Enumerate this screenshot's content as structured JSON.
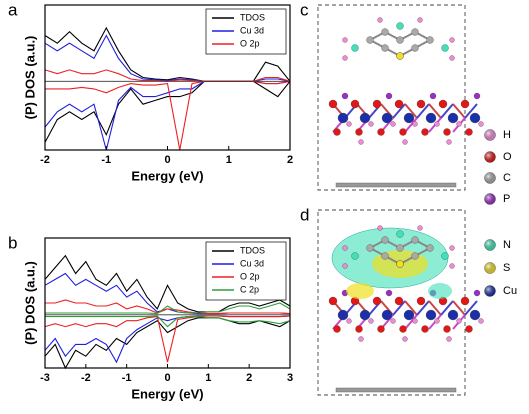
{
  "chart_data": [
    {
      "type": "line",
      "panel_label": "a",
      "xlabel": "Energy (eV)",
      "ylabel": "(P) DOS (a.u.)",
      "xlim": [
        -2,
        2
      ],
      "xticks": [
        -2,
        -1,
        0,
        1,
        2
      ],
      "ylim": [
        -9,
        10
      ],
      "legend": "upper right",
      "x": [
        -2,
        -1.8,
        -1.6,
        -1.4,
        -1.2,
        -1,
        -0.8,
        -0.6,
        -0.4,
        -0.2,
        0,
        0.2,
        0.4,
        0.6,
        0.8,
        1,
        1.2,
        1.4,
        1.6,
        1.8,
        2
      ],
      "series": [
        {
          "name": "TDOS",
          "color": "#000000",
          "values": [
            6,
            5,
            6.5,
            5,
            4,
            7,
            4,
            1.5,
            0.5,
            0.3,
            0.2,
            0.5,
            0.3,
            0,
            0,
            0,
            0,
            0,
            2.5,
            2,
            0
          ],
          "values_down": [
            -8,
            -5,
            -4,
            -5,
            -4,
            -7,
            -3,
            -1,
            -3,
            -2.5,
            -2,
            -2,
            -1.5,
            0,
            0,
            0,
            0,
            0,
            -1,
            -2,
            0
          ]
        },
        {
          "name": "Cu 3d",
          "color": "#1f1fe0",
          "values": [
            5,
            4,
            5,
            4,
            3,
            6,
            3,
            1,
            0.3,
            0.2,
            0.1,
            0.3,
            0.2,
            0,
            0,
            0,
            0,
            0,
            0.3,
            0.3,
            0
          ],
          "values_down": [
            -6,
            -4,
            -3,
            -4,
            -3,
            -9,
            -2.5,
            -0.8,
            -2,
            -2,
            -1.5,
            -1,
            -1,
            0,
            0,
            0,
            0,
            0,
            -0.3,
            -0.3,
            0
          ]
        },
        {
          "name": "O 2p",
          "color": "#ee2020",
          "values": [
            1.5,
            1,
            1.5,
            1,
            1,
            1.5,
            1,
            0.3,
            0.1,
            0.1,
            0,
            0.2,
            0.1,
            0,
            0,
            0,
            0,
            0,
            0.5,
            0.5,
            0
          ],
          "values_down": [
            -1,
            -1,
            -1,
            -0.8,
            -1,
            -1.5,
            -0.8,
            -0.3,
            -0.5,
            -0.5,
            -0.3,
            -9,
            -0.3,
            0,
            0,
            0,
            0,
            0,
            -0.3,
            -0.3,
            0
          ]
        }
      ]
    },
    {
      "type": "line",
      "panel_label": "b",
      "xlabel": "Energy (eV)",
      "ylabel": "(P) DOS (a.u.)",
      "xlim": [
        -3,
        3
      ],
      "xticks": [
        -3,
        -2,
        -1,
        0,
        1,
        2,
        3
      ],
      "ylim": [
        -9,
        13
      ],
      "legend": "upper right",
      "x": [
        -3,
        -2.75,
        -2.5,
        -2.25,
        -2,
        -1.75,
        -1.5,
        -1.25,
        -1,
        -0.75,
        -0.5,
        -0.25,
        0,
        0.25,
        0.5,
        0.75,
        1,
        1.25,
        1.5,
        1.75,
        2,
        2.25,
        2.5,
        2.75,
        3
      ],
      "series": [
        {
          "name": "TDOS",
          "color": "#000000",
          "values": [
            6,
            8,
            10,
            7,
            9,
            6,
            5,
            7,
            4,
            6,
            3,
            1,
            5,
            2,
            1,
            0.5,
            0.5,
            0.5,
            1.5,
            2,
            2,
            1.5,
            2,
            2.5,
            1.5
          ],
          "values_down": [
            -7,
            -5,
            -9,
            -6,
            -7,
            -5,
            -6,
            -4,
            -5,
            -3,
            -2,
            -1,
            -3,
            -2,
            -1,
            -0.5,
            -0.5,
            -0.5,
            -1,
            -1.5,
            -1.5,
            -1,
            -1.5,
            -2,
            -1
          ]
        },
        {
          "name": "Cu 3d",
          "color": "#1f1fe0",
          "values": [
            5,
            6,
            7,
            5,
            6,
            5,
            4,
            5,
            3,
            4,
            2,
            0.5,
            1,
            0.5,
            0.3,
            0.2,
            0.2,
            0.2,
            0.3,
            0.3,
            0.3,
            0.3,
            0.3,
            0.3,
            0.2
          ],
          "values_down": [
            -6,
            -4,
            -7,
            -5,
            -5,
            -4,
            -5,
            -8,
            -4,
            -2.5,
            -1.5,
            -0.5,
            -1,
            -0.5,
            -0.3,
            -0.2,
            -0.2,
            -0.2,
            -0.3,
            -0.3,
            -0.3,
            -0.3,
            -0.3,
            -0.3,
            -0.2
          ]
        },
        {
          "name": "O 2p",
          "color": "#ee2020",
          "values": [
            2,
            2,
            2.5,
            2,
            2,
            1.5,
            1.5,
            2,
            1,
            1.5,
            1,
            0.3,
            1,
            0.8,
            0.5,
            0.3,
            0.2,
            0.2,
            0.3,
            0.3,
            0.3,
            0.3,
            0.3,
            0.3,
            0.2
          ],
          "values_down": [
            -2,
            -1.5,
            -2,
            -1.5,
            -2,
            -1.5,
            -1.5,
            -2,
            -1,
            -1,
            -0.5,
            -0.3,
            -8,
            -0.8,
            -0.5,
            -0.3,
            -0.2,
            -0.2,
            -0.3,
            -0.3,
            -0.3,
            -0.3,
            -0.3,
            -0.3,
            -0.2
          ]
        },
        {
          "name": "C 2p",
          "color": "#2e9e3e",
          "values": [
            0.3,
            0.3,
            0.3,
            0.3,
            0.3,
            0.3,
            0.3,
            0.3,
            0.3,
            0.3,
            0.3,
            0.2,
            1.5,
            0.5,
            0.3,
            0.3,
            0.5,
            0.5,
            1,
            1.5,
            1.5,
            1,
            1.5,
            2,
            1
          ],
          "values_down": [
            -0.3,
            -0.3,
            -0.3,
            -0.3,
            -0.3,
            -0.3,
            -0.3,
            -0.3,
            -0.3,
            -0.3,
            -0.3,
            -0.2,
            -2,
            -0.5,
            -0.3,
            -0.3,
            -0.5,
            -0.5,
            -1,
            -1.2,
            -1.2,
            -1,
            -1.2,
            -1.5,
            -1
          ]
        }
      ]
    }
  ],
  "structures": [
    {
      "panel_label": "c"
    },
    {
      "panel_label": "d"
    }
  ],
  "atom_legend": [
    {
      "label": "H",
      "color": "#f08ad8"
    },
    {
      "label": "O",
      "color": "#e01818"
    },
    {
      "label": "C",
      "color": "#a8a8a8"
    },
    {
      "label": "P",
      "color": "#9a2fc8"
    },
    {
      "label": "N",
      "color": "#40e0b8"
    },
    {
      "label": "S",
      "color": "#f0e020"
    },
    {
      "label": "Cu",
      "color": "#1a2fa8"
    }
  ]
}
